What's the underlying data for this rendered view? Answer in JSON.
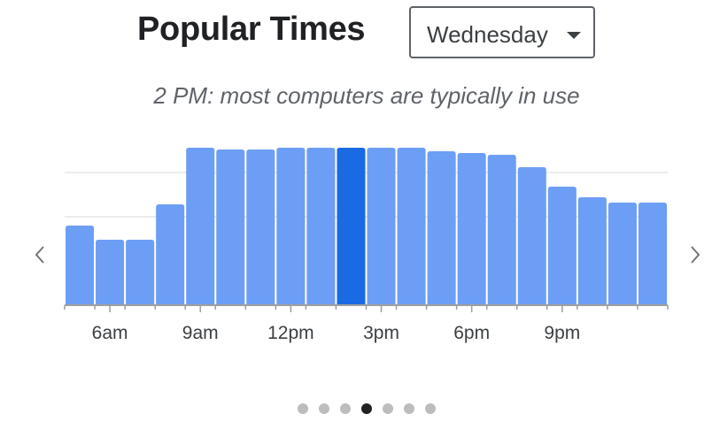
{
  "header": {
    "title": "Popular Times",
    "day_select": {
      "value": "Wednesday"
    }
  },
  "subtitle": "2 PM: most computers are typically in use",
  "nav": {
    "prev_icon": "chevron-left-icon",
    "next_icon": "chevron-right-icon"
  },
  "colors": {
    "bar": "#6d9ef5",
    "bar_highlight": "#1a6be3",
    "grid": "#e6e6e6",
    "axis": "#9e9e9e"
  },
  "chart_data": {
    "type": "bar",
    "categories": [
      "5am",
      "6am",
      "7am",
      "8am",
      "9am",
      "10am",
      "11am",
      "12pm",
      "1pm",
      "2pm",
      "3pm",
      "4pm",
      "5pm",
      "6pm",
      "7pm",
      "8pm",
      "9pm",
      "10pm",
      "11pm",
      "12am"
    ],
    "values": [
      45,
      37,
      37,
      57,
      89,
      88,
      88,
      89,
      89,
      89,
      89,
      89,
      87,
      86,
      85,
      78,
      67,
      61,
      58,
      58
    ],
    "highlight_index": 9,
    "x_tick_labels": [
      {
        "category": "6am",
        "label": "6am"
      },
      {
        "category": "9am",
        "label": "9am"
      },
      {
        "category": "12pm",
        "label": "12pm"
      },
      {
        "category": "3pm",
        "label": "3pm"
      },
      {
        "category": "6pm",
        "label": "6pm"
      },
      {
        "category": "9pm",
        "label": "9pm"
      }
    ],
    "ylim": [
      0,
      100
    ],
    "gridlines": [
      50,
      75
    ],
    "title": "",
    "xlabel": "",
    "ylabel": ""
  },
  "pagination": {
    "count": 7,
    "active_index": 3
  }
}
